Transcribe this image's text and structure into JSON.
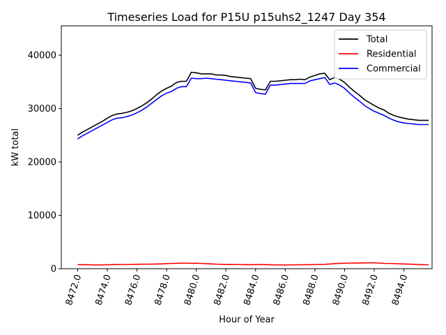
{
  "chart_data": {
    "type": "line",
    "title": "Timeseries Load for P15U p15uhs2_1247  Day 354",
    "xlabel": "Hour of Year",
    "ylabel": "kW total",
    "xlim": [
      8470.9,
      8495.9
    ],
    "ylim": [
      0,
      45500
    ],
    "x_ticks": [
      8472,
      8474,
      8476,
      8478,
      8480,
      8482,
      8484,
      8486,
      8488,
      8490,
      8492,
      8494
    ],
    "x_tick_labels": [
      "8472.0",
      "8474.0",
      "8476.0",
      "8478.0",
      "8480.0",
      "8482.0",
      "8484.0",
      "8486.0",
      "8488.0",
      "8490.0",
      "8492.0",
      "8494.0"
    ],
    "y_ticks": [
      0,
      10000,
      20000,
      30000,
      40000
    ],
    "y_tick_labels": [
      "0",
      "10000",
      "20000",
      "30000",
      "40000"
    ],
    "legend_position": "top-right",
    "grid": false,
    "x": [
      8472.0,
      8472.33,
      8472.67,
      8473.0,
      8473.33,
      8473.67,
      8474.0,
      8474.33,
      8474.67,
      8475.0,
      8475.33,
      8475.67,
      8476.0,
      8476.33,
      8476.67,
      8477.0,
      8477.33,
      8477.67,
      8478.0,
      8478.33,
      8478.67,
      8479.0,
      8479.33,
      8479.67,
      8480.0,
      8480.33,
      8480.67,
      8481.0,
      8481.33,
      8481.67,
      8482.0,
      8482.33,
      8482.67,
      8483.0,
      8483.33,
      8483.67,
      8484.0,
      8484.33,
      8484.67,
      8485.0,
      8485.33,
      8485.67,
      8486.0,
      8486.33,
      8486.67,
      8487.0,
      8487.33,
      8487.67,
      8488.0,
      8488.33,
      8488.67,
      8489.0,
      8489.33,
      8489.67,
      8490.0,
      8490.33,
      8490.67,
      8491.0,
      8491.33,
      8491.67,
      8492.0,
      8492.33,
      8492.67,
      8493.0,
      8493.33,
      8493.67,
      8494.0,
      8494.33,
      8494.67,
      8495.0,
      8495.33,
      8495.67
    ],
    "series": [
      {
        "name": "Total",
        "color": "#000000",
        "values": [
          25000,
          25600,
          26100,
          26600,
          27100,
          27600,
          28200,
          28700,
          29000,
          29100,
          29300,
          29600,
          30000,
          30500,
          31100,
          31800,
          32600,
          33300,
          33800,
          34200,
          34900,
          35100,
          35100,
          36800,
          36700,
          36500,
          36500,
          36500,
          36300,
          36300,
          36200,
          36000,
          35900,
          35800,
          35700,
          35600,
          33800,
          33600,
          33500,
          35100,
          35100,
          35200,
          35300,
          35400,
          35400,
          35500,
          35400,
          35900,
          36200,
          36500,
          36600,
          35400,
          35800,
          35500,
          34900,
          34000,
          33200,
          32500,
          31700,
          31100,
          30600,
          30100,
          29700,
          29100,
          28700,
          28400,
          28200,
          28000,
          27900,
          27800,
          27800,
          27800
        ]
      },
      {
        "name": "Residential",
        "color": "#ff0000",
        "values": [
          760,
          750,
          760,
          700,
          720,
          700,
          730,
          760,
          800,
          790,
          780,
          810,
          830,
          840,
          850,
          860,
          880,
          900,
          950,
          980,
          1010,
          1030,
          1040,
          1010,
          1020,
          980,
          940,
          900,
          850,
          820,
          800,
          810,
          790,
          780,
          760,
          740,
          780,
          770,
          760,
          730,
          710,
          700,
          690,
          710,
          720,
          730,
          740,
          760,
          780,
          810,
          830,
          880,
          950,
          990,
          1020,
          1050,
          1060,
          1070,
          1080,
          1100,
          1110,
          1050,
          1000,
          980,
          950,
          910,
          890,
          860,
          830,
          780,
          740,
          720
        ]
      },
      {
        "name": "Commercial",
        "color": "#0000ff",
        "values": [
          24300,
          24900,
          25400,
          25900,
          26400,
          26900,
          27400,
          27900,
          28200,
          28300,
          28500,
          28800,
          29200,
          29700,
          30300,
          31000,
          31700,
          32400,
          32900,
          33200,
          33800,
          34100,
          34100,
          35700,
          35600,
          35600,
          35700,
          35600,
          35500,
          35400,
          35300,
          35200,
          35100,
          35000,
          34900,
          34800,
          33000,
          32800,
          32700,
          34400,
          34400,
          34500,
          34600,
          34700,
          34700,
          34700,
          34700,
          35200,
          35400,
          35600,
          35800,
          34500,
          34800,
          34400,
          33800,
          32900,
          32100,
          31400,
          30600,
          30000,
          29500,
          29100,
          28700,
          28200,
          27800,
          27500,
          27300,
          27200,
          27100,
          27000,
          27000,
          27000
        ]
      }
    ]
  }
}
